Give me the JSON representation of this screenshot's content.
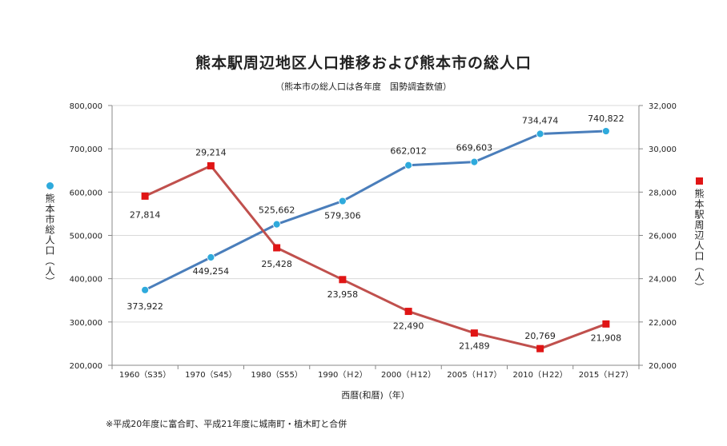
{
  "chart_data": {
    "type": "line",
    "title": "熊本駅周辺地区人口推移および熊本市の総人口",
    "subtitle": "（熊本市の総人口は各年度　国勢調査数値）",
    "xlabel": "西暦(和暦)（年）",
    "categories": [
      "1960（S35）",
      "1970（S45）",
      "1980（S55）",
      "1990（Ｈ2）",
      "2000（Ｈ12）",
      "2005（Ｈ17）",
      "2010（Ｈ22）",
      "2015（Ｈ27）"
    ],
    "left_axis": {
      "label": "熊本市総人口（人）",
      "ylim": [
        200000,
        800000
      ],
      "ticks": [
        "200,000",
        "300,000",
        "400,000",
        "500,000",
        "600,000",
        "700,000",
        "800,000"
      ]
    },
    "right_axis": {
      "label": "熊本駅周辺人口（人）",
      "ylim": [
        20000,
        32000
      ],
      "ticks": [
        "20,000",
        "22,000",
        "24,000",
        "26,000",
        "28,000",
        "30,000",
        "32,000"
      ]
    },
    "series": [
      {
        "axis": "left",
        "color": "#4a7ebb",
        "marker_color": "#2eaadc",
        "marker": "circle",
        "values": [
          373922,
          449254,
          525662,
          579306,
          662012,
          669603,
          734474,
          740822
        ],
        "labels": [
          "373,922",
          "449,254",
          "525,662",
          "579,306",
          "662,012",
          "669,603",
          "734,474",
          "740,822"
        ]
      },
      {
        "axis": "right",
        "color": "#c0504d",
        "marker_color": "#e01515",
        "marker": "square",
        "values": [
          27814,
          29214,
          25428,
          23958,
          22490,
          21489,
          20769,
          21908
        ],
        "labels": [
          "27,814",
          "29,214",
          "25,428",
          "23,958",
          "22,490",
          "21,489",
          "20,769",
          "21,908"
        ]
      }
    ],
    "grid": "horizontal"
  },
  "note": "※平成20年度に富合町、平成21年度に城南町・植木町と合併"
}
